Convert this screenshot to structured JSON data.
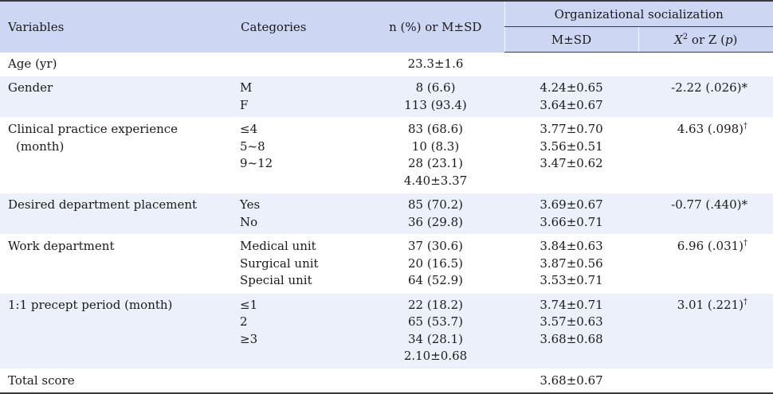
{
  "header": {
    "variables": "Variables",
    "categories": "Categories",
    "n_col": "n (%) or M±SD",
    "group": "Organizational socialization",
    "msd": "M±SD",
    "test_prefix": "X",
    "test_sup": "2",
    "test_mid": " or Z (",
    "test_p": "p",
    "test_suffix": ")"
  },
  "rows": [
    {
      "variable_lines": [
        "Age (yr)"
      ],
      "categories": [],
      "n_values": [
        "23.3±1.6"
      ],
      "msd": [],
      "test": "",
      "mark": ""
    },
    {
      "variable_lines": [
        "Gender"
      ],
      "categories": [
        "M",
        "F"
      ],
      "n_values": [
        "8 (6.6)",
        "113 (93.4)"
      ],
      "msd": [
        "4.24±0.65",
        "3.64±0.67"
      ],
      "test": "-2.22 (.026)*",
      "mark": ""
    },
    {
      "variable_lines": [
        "Clinical practice experience",
        "(month)"
      ],
      "categories": [
        "≤4",
        "5~8",
        "9~12"
      ],
      "n_values": [
        "83 (68.6)",
        "10 (8.3)",
        "28 (23.1)",
        "4.40±3.37"
      ],
      "msd": [
        "3.77±0.70",
        "3.56±0.51",
        "3.47±0.62"
      ],
      "test": "4.63 (.098)",
      "mark": "†"
    },
    {
      "variable_lines": [
        "Desired department placement"
      ],
      "categories": [
        "Yes",
        "No"
      ],
      "n_values": [
        "85 (70.2)",
        "36 (29.8)"
      ],
      "msd": [
        "3.69±0.67",
        "3.66±0.71"
      ],
      "test": "-0.77 (.440)*",
      "mark": ""
    },
    {
      "variable_lines": [
        "Work department"
      ],
      "categories": [
        "Medical unit",
        "Surgical unit",
        "Special unit"
      ],
      "n_values": [
        "37 (30.6)",
        "20 (16.5)",
        "64 (52.9)"
      ],
      "msd": [
        "3.84±0.63",
        "3.87±0.56",
        "3.53±0.71"
      ],
      "test": "6.96 (.031)",
      "mark": "†"
    },
    {
      "variable_lines": [
        "1:1 precept period (month)"
      ],
      "categories": [
        "≤1",
        "2",
        "≥3"
      ],
      "n_values": [
        "22 (18.2)",
        "65 (53.7)",
        "34 (28.1)",
        "2.10±0.68"
      ],
      "msd": [
        "3.74±0.71",
        "3.57±0.63",
        "3.68±0.68"
      ],
      "test": "3.01 (.221)",
      "mark": "†"
    },
    {
      "variable_lines": [
        "Total score"
      ],
      "categories": [],
      "n_values": [],
      "msd": [
        "3.68±0.67"
      ],
      "test": "",
      "mark": ""
    }
  ],
  "colors": {
    "header_bg": "#cdd7f4",
    "shade_bg": "#ecf0fb",
    "rule": "#3a3a3a"
  }
}
